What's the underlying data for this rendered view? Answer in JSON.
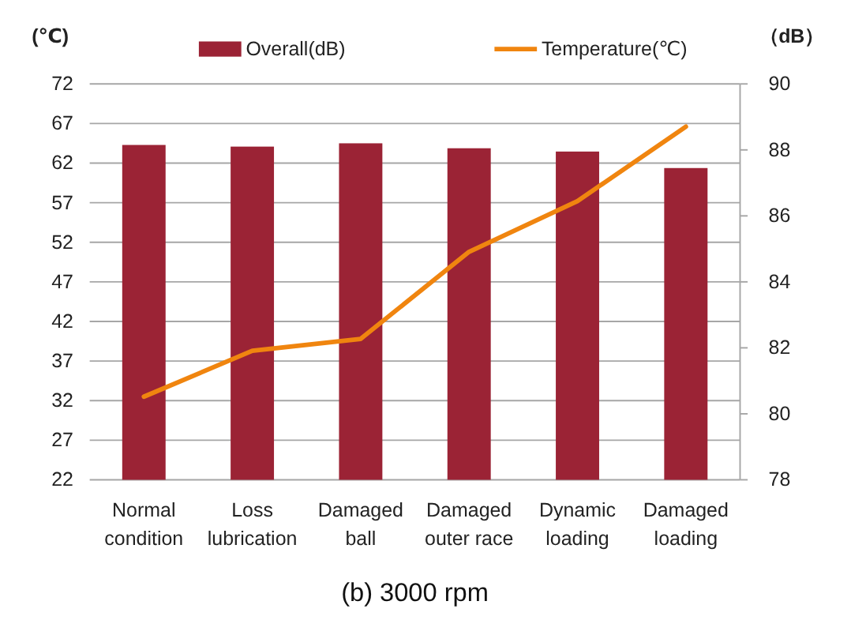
{
  "chart_data": {
    "type": "bar",
    "ylabel": "(℃)",
    "y2label": "（dB）",
    "annotations": [
      "(b)  3000  rpm"
    ],
    "categories": [
      "Normal\ncondition",
      "Loss\nlubrication",
      "Damaged\nball",
      "Damaged\nouter race",
      "Dynamic\nloading",
      "Damaged\nloading"
    ],
    "series": [
      {
        "name": "Overall(dB)",
        "axis": "y2",
        "color": "#9b2335",
        "values": [
          88.15,
          88.1,
          88.2,
          88.05,
          87.95,
          87.45
        ]
      },
      {
        "name": "Temperature(℃)",
        "type": "line",
        "axis": "y",
        "color": "#f0850f",
        "values": [
          32.5,
          38.3,
          39.8,
          50.8,
          57.2,
          66.6
        ]
      }
    ],
    "ylim": [
      22,
      72
    ],
    "yticks": [
      22,
      27,
      32,
      37,
      42,
      47,
      52,
      57,
      62,
      67,
      72
    ],
    "y2lim": [
      78,
      90
    ],
    "y2ticks": [
      78,
      80,
      82,
      84,
      86,
      88,
      90
    ],
    "grid": "y",
    "legend": "top",
    "line_style": "solid",
    "marker": "none"
  }
}
